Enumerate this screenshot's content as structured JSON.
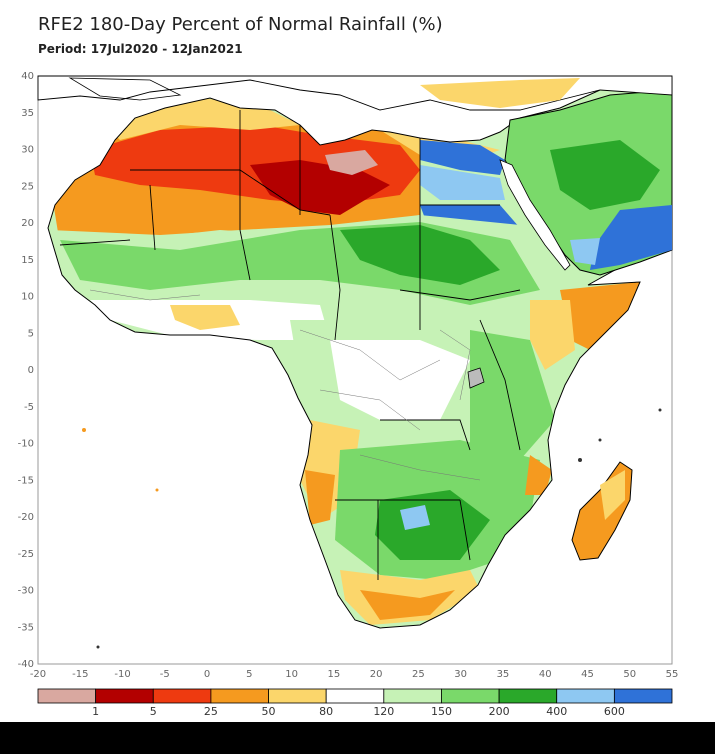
{
  "header": {
    "title": "RFE2 180-Day Percent of Normal Rainfall (%)",
    "period_label": "Period:",
    "period_value": "17Jul2020 - 12Jan2021"
  },
  "map": {
    "lon_range": [
      -20,
      55
    ],
    "lat_range": [
      -40,
      40
    ],
    "x_ticks": [
      "-20",
      "-15",
      "-10",
      "-5",
      "0",
      "5",
      "10",
      "15",
      "20",
      "25",
      "30",
      "35",
      "40",
      "45",
      "50",
      "55"
    ],
    "y_ticks": [
      "40",
      "35",
      "30",
      "25",
      "20",
      "15",
      "10",
      "5",
      "0",
      "-5",
      "-10",
      "-15",
      "-20",
      "-25",
      "-30",
      "-35",
      "-40"
    ]
  },
  "colors": {
    "c0": "#d9a8a0",
    "c1": "#b30000",
    "c2": "#ee3a10",
    "c3": "#f59a1f",
    "c4": "#fbd66b",
    "c5": "#ffffff",
    "c6": "#c6f2b6",
    "c7": "#7ad96a",
    "c8": "#2aa82a",
    "c9": "#8ec8f2",
    "c10": "#2f72d8",
    "sea": "#ffffff",
    "border": "#000000"
  },
  "colorbar": {
    "labels": [
      "1",
      "5",
      "25",
      "50",
      "80",
      "120",
      "150",
      "200",
      "400",
      "600"
    ]
  }
}
